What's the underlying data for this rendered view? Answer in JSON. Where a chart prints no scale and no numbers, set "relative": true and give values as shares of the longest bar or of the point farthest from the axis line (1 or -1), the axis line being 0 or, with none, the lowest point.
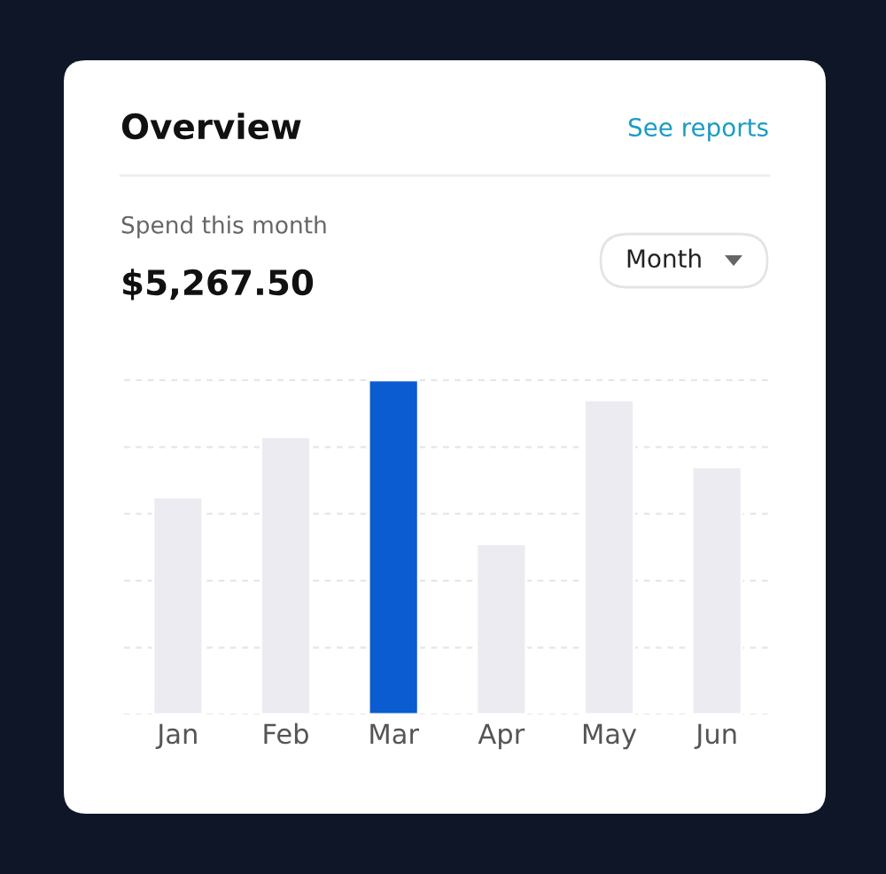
{
  "chart_data": {
    "type": "bar",
    "title": "Overview",
    "annotations": [
      "See reports",
      "Spend this month",
      "$5,267.50",
      "Month"
    ],
    "categories": [
      "Jan",
      "Feb",
      "Mar",
      "Apr",
      "May",
      "Jun"
    ],
    "values": [
      0.65,
      0.83,
      1,
      0.51,
      0.94,
      0.74
    ],
    "colors": [
      "#ebebf1",
      "#ebebf1",
      "#0a5cd0",
      "#ebebf1",
      "#ebebf1",
      "#ebebf1"
    ],
    "relative": true,
    "grid": "y",
    "tick_labels": "x"
  }
}
